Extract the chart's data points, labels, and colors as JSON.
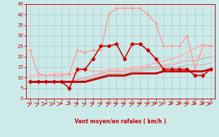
{
  "xlabel": "Vent moyen/en rafales ( km/h )",
  "xlim": [
    -0.5,
    23.5
  ],
  "ylim": [
    0,
    45
  ],
  "yticks": [
    0,
    5,
    10,
    15,
    20,
    25,
    30,
    35,
    40,
    45
  ],
  "xticks": [
    0,
    1,
    2,
    3,
    4,
    5,
    6,
    7,
    8,
    9,
    10,
    11,
    12,
    13,
    14,
    15,
    16,
    17,
    18,
    19,
    20,
    21,
    22,
    23
  ],
  "bg_color": "#cceaea",
  "grid_color": "#aacccc",
  "lines": [
    {
      "x": [
        0,
        1,
        2,
        3,
        4,
        5,
        6,
        7,
        8,
        9,
        10,
        11,
        12,
        13,
        14,
        15,
        16,
        17,
        18,
        19,
        20,
        21,
        22,
        23
      ],
      "y": [
        23,
        12,
        11,
        11,
        11,
        12,
        23,
        22,
        23,
        23,
        40,
        43,
        43,
        43,
        43,
        40,
        36,
        25,
        25,
        25,
        30,
        14,
        25,
        25
      ],
      "color": "#ff9999",
      "lw": 1.0,
      "marker": ".",
      "ms": 3,
      "alpha": 1.0,
      "zorder": 3
    },
    {
      "x": [
        0,
        1,
        2,
        3,
        4,
        5,
        6,
        7,
        8,
        9,
        10,
        11,
        12,
        13,
        14,
        15,
        16,
        17,
        18,
        19,
        20,
        21,
        22,
        23
      ],
      "y": [
        11,
        11,
        11,
        12,
        12,
        11,
        13,
        14,
        13,
        13,
        14,
        14,
        14,
        15,
        15,
        16,
        17,
        18,
        19,
        20,
        22,
        24,
        26,
        25
      ],
      "color": "#ffaaaa",
      "lw": 1.0,
      "marker": ".",
      "ms": 2,
      "alpha": 1.0,
      "zorder": 2
    },
    {
      "x": [
        0,
        1,
        2,
        3,
        4,
        5,
        6,
        7,
        8,
        9,
        10,
        11,
        12,
        13,
        14,
        15,
        16,
        17,
        18,
        19,
        20,
        21,
        22,
        23
      ],
      "y": [
        8,
        8,
        8,
        8,
        8,
        8,
        9,
        10,
        11,
        12,
        13,
        13,
        13,
        14,
        14,
        15,
        15,
        16,
        17,
        18,
        19,
        20,
        21,
        22
      ],
      "color": "#ffbbbb",
      "lw": 0.8,
      "marker": null,
      "ms": 0,
      "alpha": 0.9,
      "zorder": 2
    },
    {
      "x": [
        0,
        1,
        2,
        3,
        4,
        5,
        6,
        7,
        8,
        9,
        10,
        11,
        12,
        13,
        14,
        15,
        16,
        17,
        18,
        19,
        20,
        21,
        22,
        23
      ],
      "y": [
        8,
        8,
        8,
        8,
        8,
        8,
        9,
        10,
        11,
        12,
        13,
        13,
        13,
        14,
        14,
        15,
        15,
        16,
        16,
        17,
        18,
        18,
        19,
        20
      ],
      "color": "#dd6666",
      "lw": 0.8,
      "marker": null,
      "ms": 0,
      "alpha": 0.5,
      "zorder": 2
    },
    {
      "x": [
        0,
        1,
        2,
        3,
        4,
        5,
        6,
        7,
        8,
        9,
        10,
        11,
        12,
        13,
        14,
        15,
        16,
        17,
        18,
        19,
        20,
        21,
        22,
        23
      ],
      "y": [
        8,
        8,
        8,
        8,
        8,
        8,
        8,
        9,
        10,
        11,
        12,
        12,
        12,
        13,
        13,
        14,
        14,
        15,
        15,
        15,
        16,
        16,
        16,
        17
      ],
      "color": "#cc4444",
      "lw": 0.8,
      "marker": null,
      "ms": 0,
      "alpha": 0.4,
      "zorder": 2
    },
    {
      "x": [
        0,
        1,
        2,
        3,
        4,
        5,
        6,
        7,
        8,
        9,
        10,
        11,
        12,
        13,
        14,
        15,
        16,
        17,
        18,
        19,
        20,
        21,
        22,
        23
      ],
      "y": [
        8,
        8,
        8,
        8,
        8,
        8,
        8,
        8,
        9,
        10,
        11,
        11,
        11,
        12,
        12,
        12,
        12,
        13,
        13,
        13,
        13,
        13,
        13,
        14
      ],
      "color": "#cc0000",
      "lw": 2.2,
      "marker": null,
      "ms": 0,
      "alpha": 1.0,
      "zorder": 4
    },
    {
      "x": [
        0,
        1,
        2,
        3,
        4,
        5,
        6,
        7,
        8,
        9,
        10,
        11,
        12,
        13,
        14,
        15,
        16,
        17,
        18,
        19,
        20,
        21,
        22,
        23
      ],
      "y": [
        8,
        8,
        8,
        8,
        8,
        5,
        14,
        14,
        19,
        25,
        25,
        26,
        19,
        26,
        26,
        23,
        19,
        14,
        14,
        14,
        14,
        11,
        11,
        14
      ],
      "color": "#cc0000",
      "lw": 1.2,
      "marker": "D",
      "ms": 2.5,
      "alpha": 1.0,
      "zorder": 5
    }
  ],
  "arrow_color": "#cc0000",
  "xlabel_color": "#cc0000",
  "tick_color": "#cc0000",
  "axis_color": "#cc0000",
  "arrow_angles": [
    45,
    45,
    90,
    90,
    90,
    135,
    45,
    45,
    45,
    45,
    45,
    45,
    45,
    45,
    45,
    45,
    90,
    90,
    135,
    135,
    45,
    135,
    135,
    90
  ]
}
